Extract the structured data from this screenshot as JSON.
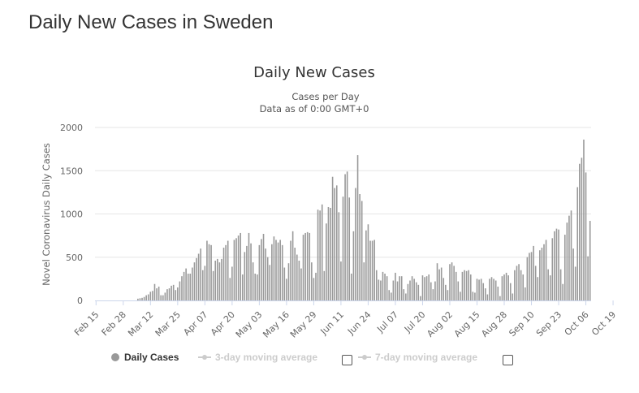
{
  "page": {
    "title": "Daily New Cases in Sweden"
  },
  "chart_data": {
    "type": "bar",
    "title": "Daily New Cases",
    "subtitle_line1": "Cases per Day",
    "subtitle_line2": "Data as of 0:00 GMT+0",
    "ylabel": "Novel Coronavirus Daily Cases",
    "xlabel": "",
    "ylim": [
      0,
      2000
    ],
    "yticks": [
      0,
      500,
      1000,
      1500,
      2000
    ],
    "grid": true,
    "x_start": "2020-02-15",
    "x_tick_labels": [
      "Feb 15",
      "Feb 28",
      "Mar 12",
      "Mar 25",
      "Apr 07",
      "Apr 20",
      "May 03",
      "May 16",
      "May 29",
      "Jun 11",
      "Jun 24",
      "Jul 07",
      "Jul 20",
      "Aug 02",
      "Aug 15",
      "Aug 28",
      "Sep 10",
      "Sep 23",
      "Oct 06",
      "Oct 19"
    ],
    "series": [
      {
        "name": "Daily Cases",
        "color": "#999999",
        "values": [
          0,
          0,
          0,
          0,
          0,
          0,
          0,
          0,
          0,
          0,
          0,
          0,
          0,
          0,
          0,
          0,
          0,
          0,
          0,
          0,
          20,
          25,
          30,
          40,
          60,
          70,
          100,
          110,
          190,
          140,
          160,
          60,
          60,
          90,
          130,
          140,
          170,
          180,
          120,
          150,
          220,
          280,
          330,
          370,
          310,
          310,
          380,
          440,
          490,
          540,
          600,
          350,
          400,
          690,
          650,
          640,
          340,
          460,
          480,
          440,
          480,
          610,
          640,
          690,
          260,
          390,
          700,
          720,
          750,
          780,
          300,
          560,
          630,
          780,
          660,
          440,
          310,
          300,
          640,
          710,
          770,
          600,
          500,
          410,
          650,
          740,
          700,
          670,
          700,
          640,
          380,
          250,
          430,
          690,
          800,
          610,
          530,
          460,
          370,
          760,
          780,
          790,
          780,
          440,
          260,
          320,
          1050,
          1040,
          1110,
          340,
          890,
          1080,
          1070,
          1430,
          1300,
          1330,
          1020,
          450,
          1200,
          1460,
          1490,
          1190,
          310,
          800,
          1300,
          1680,
          1230,
          1150,
          440,
          810,
          880,
          690,
          690,
          700,
          350,
          240,
          230,
          330,
          310,
          280,
          120,
          90,
          230,
          320,
          220,
          280,
          280,
          130,
          80,
          190,
          230,
          280,
          250,
          210,
          180,
          50,
          290,
          270,
          280,
          300,
          210,
          130,
          220,
          430,
          360,
          380,
          260,
          180,
          120,
          420,
          440,
          400,
          330,
          220,
          100,
          330,
          350,
          340,
          350,
          300,
          100,
          90,
          250,
          240,
          250,
          200,
          140,
          70,
          250,
          270,
          250,
          230,
          160,
          50,
          280,
          300,
          320,
          290,
          200,
          80,
          350,
          400,
          420,
          350,
          300,
          150,
          500,
          550,
          560,
          630,
          400,
          270,
          580,
          610,
          650,
          700,
          360,
          290,
          720,
          800,
          830,
          820,
          360,
          190,
          760,
          900,
          980,
          1040,
          600,
          390,
          1310,
          1580,
          1650,
          1860,
          1480,
          510,
          920
        ]
      }
    ],
    "legend": {
      "items": [
        {
          "label": "Daily Cases"
        },
        {
          "label": "3-day moving average"
        },
        {
          "label": "7-day moving average"
        }
      ]
    }
  }
}
